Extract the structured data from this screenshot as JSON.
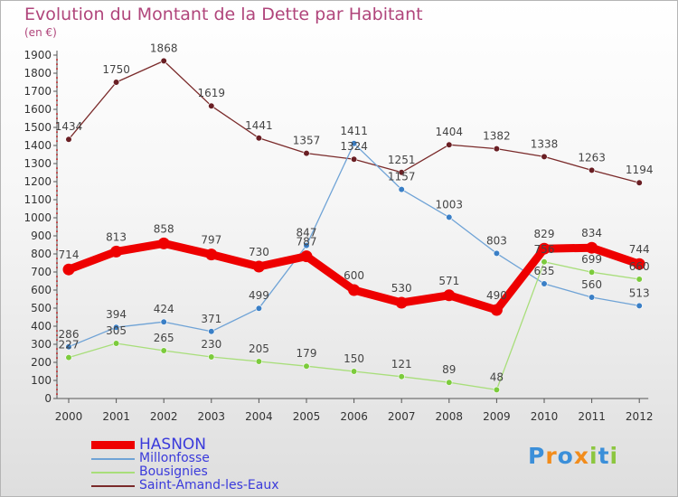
{
  "title": "Evolution du Montant de la Dette par Habitant",
  "subtitle": "(en €)",
  "logo": {
    "text": "Proxiti",
    "letters": [
      {
        "ch": "P",
        "color": "#3b8fd9"
      },
      {
        "ch": "r",
        "color": "#f28c1b"
      },
      {
        "ch": "o",
        "color": "#3b8fd9"
      },
      {
        "ch": "x",
        "color": "#f28c1b"
      },
      {
        "ch": "i",
        "color": "#8cc63f"
      },
      {
        "ch": "t",
        "color": "#3b8fd9"
      },
      {
        "ch": "i",
        "color": "#8cc63f"
      }
    ]
  },
  "legend": [
    {
      "name": "HASNON",
      "color": "#ee0000",
      "thick": true
    },
    {
      "name": "Millonfosse",
      "color": "#6fa3d6",
      "thick": false
    },
    {
      "name": "Bousignies",
      "color": "#a8de7a",
      "thick": false
    },
    {
      "name": "Saint-Amand-les-Eaux",
      "color": "#7a2a2a",
      "thick": false
    }
  ],
  "chart_data": {
    "type": "line",
    "title": "Evolution du Montant de la Dette par Habitant",
    "subtitle": "(en €)",
    "x": [
      "2000",
      "2001",
      "2002",
      "2003",
      "2004",
      "2005",
      "2006",
      "2007",
      "2008",
      "2009",
      "2010",
      "2011",
      "2012"
    ],
    "ylim": [
      0,
      1900
    ],
    "yticks": [
      0,
      100,
      200,
      300,
      400,
      500,
      600,
      700,
      800,
      900,
      1000,
      1100,
      1200,
      1300,
      1400,
      1500,
      1600,
      1700,
      1800,
      1900
    ],
    "grid": false,
    "legend_position": "bottom-left",
    "series": [
      {
        "name": "Saint-Amand-les-Eaux",
        "color": "#7a2a2a",
        "marker_color": "#6a1f24",
        "values": [
          1434,
          1750,
          1868,
          1619,
          1441,
          1357,
          1324,
          1251,
          1404,
          1382,
          1338,
          1263,
          1194
        ]
      },
      {
        "name": "Millonfosse",
        "color": "#6fa3d6",
        "marker_color": "#3a7fc6",
        "values": [
          286,
          394,
          424,
          371,
          499,
          847,
          1411,
          1157,
          1003,
          803,
          635,
          560,
          513
        ]
      },
      {
        "name": "Bousignies",
        "color": "#a8de7a",
        "marker_color": "#7ccb3c",
        "values": [
          227,
          305,
          265,
          230,
          205,
          179,
          150,
          121,
          89,
          48,
          756,
          699,
          660
        ]
      },
      {
        "name": "HASNON",
        "color": "#ee0000",
        "marker_color": "#ee0000",
        "values": [
          714,
          813,
          858,
          797,
          730,
          787,
          600,
          530,
          571,
          490,
          829,
          834,
          744
        ]
      }
    ]
  }
}
